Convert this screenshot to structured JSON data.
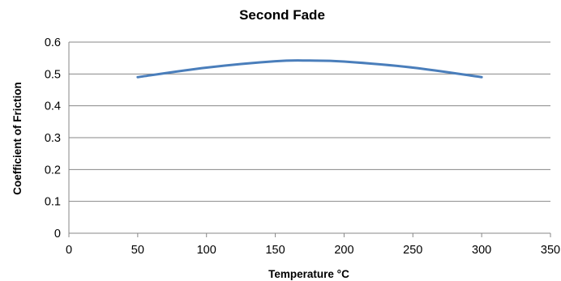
{
  "chart_data": {
    "type": "line",
    "title": "Second Fade",
    "xlabel": "Temperature °C",
    "ylabel": "Coefficient of Friction",
    "xlim": [
      0,
      350
    ],
    "ylim": [
      0,
      0.6
    ],
    "x_ticks": [
      "0",
      "50",
      "100",
      "150",
      "200",
      "250",
      "300",
      "350"
    ],
    "y_ticks": [
      "0",
      "0.1",
      "0.2",
      "0.3",
      "0.4",
      "0.5",
      "0.6"
    ],
    "grid": true,
    "legend": "none",
    "series": [
      {
        "color": "#4a7ebb",
        "x": [
          50,
          100,
          150,
          175,
          200,
          250,
          300
        ],
        "y": [
          0.49,
          0.52,
          0.54,
          0.542,
          0.539,
          0.52,
          0.49
        ]
      }
    ]
  }
}
